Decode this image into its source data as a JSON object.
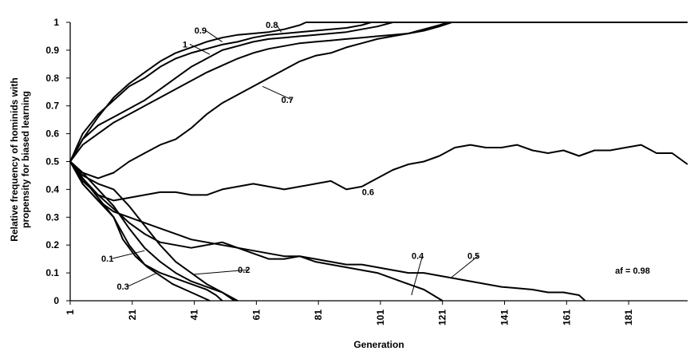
{
  "chart_data": {
    "type": "line",
    "title": "",
    "xlabel": "Generation",
    "ylabel_lines": [
      "Relative frequency of hominids with",
      "propensity for biased learning"
    ],
    "xlim": [
      1,
      200
    ],
    "ylim": [
      0,
      1
    ],
    "x_ticks": [
      1,
      21,
      41,
      61,
      81,
      101,
      121,
      141,
      161,
      181
    ],
    "y_ticks": [
      0,
      0.1,
      0.2,
      0.3,
      0.4,
      0.5,
      0.6,
      0.7,
      0.8,
      0.9,
      1
    ],
    "y_tick_labels": [
      "0",
      "0.1",
      "0.2",
      "0.3",
      "0.4",
      "0.5",
      "0.6",
      "0.7",
      "0.8",
      "0.9",
      "1"
    ],
    "annotation": "af = 0.98",
    "series": [
      {
        "name": "0.8",
        "points": [
          [
            1,
            0.5
          ],
          [
            5,
            0.58
          ],
          [
            10,
            0.66
          ],
          [
            15,
            0.73
          ],
          [
            20,
            0.78
          ],
          [
            25,
            0.82
          ],
          [
            30,
            0.86
          ],
          [
            35,
            0.89
          ],
          [
            40,
            0.91
          ],
          [
            45,
            0.93
          ],
          [
            50,
            0.945
          ],
          [
            55,
            0.955
          ],
          [
            60,
            0.96
          ],
          [
            65,
            0.965
          ],
          [
            70,
            0.975
          ],
          [
            75,
            0.99
          ],
          [
            77,
            1
          ],
          [
            200,
            1
          ]
        ]
      },
      {
        "name": "0.9",
        "points": [
          [
            1,
            0.5
          ],
          [
            5,
            0.6
          ],
          [
            10,
            0.67
          ],
          [
            15,
            0.72
          ],
          [
            20,
            0.77
          ],
          [
            25,
            0.8
          ],
          [
            30,
            0.84
          ],
          [
            35,
            0.87
          ],
          [
            40,
            0.89
          ],
          [
            45,
            0.905
          ],
          [
            50,
            0.92
          ],
          [
            55,
            0.93
          ],
          [
            60,
            0.945
          ],
          [
            65,
            0.955
          ],
          [
            70,
            0.96
          ],
          [
            75,
            0.965
          ],
          [
            80,
            0.97
          ],
          [
            85,
            0.975
          ],
          [
            90,
            0.98
          ],
          [
            95,
            0.99
          ],
          [
            98,
            1
          ],
          [
            200,
            1
          ]
        ]
      },
      {
        "name": "1",
        "points": [
          [
            1,
            0.5
          ],
          [
            5,
            0.58
          ],
          [
            10,
            0.63
          ],
          [
            15,
            0.66
          ],
          [
            20,
            0.69
          ],
          [
            25,
            0.72
          ],
          [
            30,
            0.76
          ],
          [
            35,
            0.8
          ],
          [
            40,
            0.84
          ],
          [
            45,
            0.87
          ],
          [
            50,
            0.9
          ],
          [
            55,
            0.915
          ],
          [
            60,
            0.93
          ],
          [
            65,
            0.94
          ],
          [
            70,
            0.945
          ],
          [
            75,
            0.95
          ],
          [
            80,
            0.955
          ],
          [
            85,
            0.96
          ],
          [
            90,
            0.965
          ],
          [
            95,
            0.975
          ],
          [
            100,
            0.985
          ],
          [
            105,
            1
          ],
          [
            200,
            1
          ]
        ]
      },
      {
        "name": "",
        "points": [
          [
            1,
            0.5
          ],
          [
            5,
            0.56
          ],
          [
            10,
            0.6
          ],
          [
            15,
            0.64
          ],
          [
            20,
            0.67
          ],
          [
            25,
            0.7
          ],
          [
            30,
            0.73
          ],
          [
            35,
            0.76
          ],
          [
            40,
            0.79
          ],
          [
            45,
            0.82
          ],
          [
            50,
            0.845
          ],
          [
            55,
            0.87
          ],
          [
            60,
            0.89
          ],
          [
            65,
            0.905
          ],
          [
            70,
            0.915
          ],
          [
            75,
            0.925
          ],
          [
            80,
            0.93
          ],
          [
            85,
            0.935
          ],
          [
            90,
            0.94
          ],
          [
            95,
            0.945
          ],
          [
            100,
            0.95
          ],
          [
            105,
            0.955
          ],
          [
            110,
            0.96
          ],
          [
            115,
            0.97
          ],
          [
            120,
            0.985
          ],
          [
            124,
            1
          ],
          [
            200,
            1
          ]
        ]
      },
      {
        "name": "0.7",
        "points": [
          [
            1,
            0.5
          ],
          [
            5,
            0.46
          ],
          [
            10,
            0.44
          ],
          [
            15,
            0.46
          ],
          [
            20,
            0.5
          ],
          [
            25,
            0.53
          ],
          [
            30,
            0.56
          ],
          [
            35,
            0.58
          ],
          [
            40,
            0.62
          ],
          [
            45,
            0.67
          ],
          [
            50,
            0.71
          ],
          [
            55,
            0.74
          ],
          [
            60,
            0.77
          ],
          [
            65,
            0.8
          ],
          [
            70,
            0.83
          ],
          [
            75,
            0.86
          ],
          [
            80,
            0.88
          ],
          [
            85,
            0.89
          ],
          [
            90,
            0.91
          ],
          [
            95,
            0.925
          ],
          [
            100,
            0.94
          ],
          [
            105,
            0.95
          ],
          [
            110,
            0.96
          ],
          [
            115,
            0.975
          ],
          [
            120,
            0.99
          ],
          [
            123,
            1
          ],
          [
            200,
            1
          ]
        ]
      },
      {
        "name": "0.6",
        "points": [
          [
            1,
            0.5
          ],
          [
            5,
            0.43
          ],
          [
            10,
            0.38
          ],
          [
            15,
            0.36
          ],
          [
            20,
            0.37
          ],
          [
            25,
            0.38
          ],
          [
            30,
            0.39
          ],
          [
            35,
            0.39
          ],
          [
            40,
            0.38
          ],
          [
            45,
            0.38
          ],
          [
            50,
            0.4
          ],
          [
            55,
            0.41
          ],
          [
            60,
            0.42
          ],
          [
            65,
            0.41
          ],
          [
            70,
            0.4
          ],
          [
            75,
            0.41
          ],
          [
            80,
            0.42
          ],
          [
            85,
            0.43
          ],
          [
            90,
            0.4
          ],
          [
            95,
            0.41
          ],
          [
            100,
            0.44
          ],
          [
            105,
            0.47
          ],
          [
            110,
            0.49
          ],
          [
            115,
            0.5
          ],
          [
            120,
            0.52
          ],
          [
            125,
            0.55
          ],
          [
            130,
            0.56
          ],
          [
            135,
            0.55
          ],
          [
            140,
            0.55
          ],
          [
            145,
            0.56
          ],
          [
            150,
            0.54
          ],
          [
            155,
            0.53
          ],
          [
            160,
            0.54
          ],
          [
            165,
            0.52
          ],
          [
            170,
            0.54
          ],
          [
            175,
            0.54
          ],
          [
            180,
            0.55
          ],
          [
            185,
            0.56
          ],
          [
            190,
            0.53
          ],
          [
            195,
            0.53
          ],
          [
            200,
            0.49
          ]
        ]
      },
      {
        "name": "0.5",
        "points": [
          [
            1,
            0.5
          ],
          [
            5,
            0.42
          ],
          [
            10,
            0.36
          ],
          [
            15,
            0.32
          ],
          [
            20,
            0.3
          ],
          [
            25,
            0.28
          ],
          [
            30,
            0.26
          ],
          [
            35,
            0.24
          ],
          [
            40,
            0.22
          ],
          [
            45,
            0.21
          ],
          [
            50,
            0.2
          ],
          [
            55,
            0.19
          ],
          [
            60,
            0.18
          ],
          [
            65,
            0.17
          ],
          [
            70,
            0.16
          ],
          [
            75,
            0.16
          ],
          [
            80,
            0.15
          ],
          [
            85,
            0.14
          ],
          [
            90,
            0.13
          ],
          [
            95,
            0.13
          ],
          [
            100,
            0.12
          ],
          [
            105,
            0.11
          ],
          [
            110,
            0.1
          ],
          [
            115,
            0.1
          ],
          [
            120,
            0.09
          ],
          [
            125,
            0.08
          ],
          [
            130,
            0.07
          ],
          [
            135,
            0.06
          ],
          [
            140,
            0.05
          ],
          [
            145,
            0.045
          ],
          [
            150,
            0.04
          ],
          [
            155,
            0.03
          ],
          [
            160,
            0.03
          ],
          [
            165,
            0.02
          ],
          [
            167,
            0
          ]
        ]
      },
      {
        "name": "0.4",
        "points": [
          [
            1,
            0.5
          ],
          [
            5,
            0.44
          ],
          [
            10,
            0.38
          ],
          [
            15,
            0.33
          ],
          [
            20,
            0.28
          ],
          [
            25,
            0.24
          ],
          [
            30,
            0.21
          ],
          [
            35,
            0.2
          ],
          [
            40,
            0.19
          ],
          [
            45,
            0.2
          ],
          [
            50,
            0.21
          ],
          [
            55,
            0.19
          ],
          [
            60,
            0.17
          ],
          [
            65,
            0.15
          ],
          [
            70,
            0.15
          ],
          [
            75,
            0.16
          ],
          [
            80,
            0.14
          ],
          [
            85,
            0.13
          ],
          [
            90,
            0.12
          ],
          [
            95,
            0.11
          ],
          [
            100,
            0.1
          ],
          [
            105,
            0.08
          ],
          [
            110,
            0.06
          ],
          [
            115,
            0.04
          ],
          [
            118,
            0.02
          ],
          [
            121,
            0
          ]
        ]
      },
      {
        "name": "0.3",
        "points": [
          [
            1,
            0.5
          ],
          [
            5,
            0.42
          ],
          [
            10,
            0.36
          ],
          [
            15,
            0.3
          ],
          [
            20,
            0.2
          ],
          [
            25,
            0.13
          ],
          [
            30,
            0.1
          ],
          [
            35,
            0.08
          ],
          [
            40,
            0.06
          ],
          [
            45,
            0.04
          ],
          [
            48,
            0.02
          ],
          [
            50,
            0
          ]
        ]
      },
      {
        "name": "0.1",
        "points": [
          [
            1,
            0.5
          ],
          [
            5,
            0.44
          ],
          [
            10,
            0.37
          ],
          [
            15,
            0.3
          ],
          [
            18,
            0.22
          ],
          [
            22,
            0.16
          ],
          [
            26,
            0.12
          ],
          [
            30,
            0.09
          ],
          [
            34,
            0.06
          ],
          [
            38,
            0.04
          ],
          [
            42,
            0.02
          ],
          [
            46,
            0
          ]
        ]
      },
      {
        "name": "0.2",
        "points": [
          [
            1,
            0.5
          ],
          [
            5,
            0.46
          ],
          [
            10,
            0.4
          ],
          [
            15,
            0.34
          ],
          [
            20,
            0.26
          ],
          [
            25,
            0.19
          ],
          [
            30,
            0.14
          ],
          [
            35,
            0.1
          ],
          [
            40,
            0.07
          ],
          [
            45,
            0.05
          ],
          [
            50,
            0.03
          ],
          [
            54,
            0
          ]
        ]
      },
      {
        "name": "",
        "points": [
          [
            1,
            0.5
          ],
          [
            5,
            0.45
          ],
          [
            10,
            0.42
          ],
          [
            15,
            0.4
          ],
          [
            20,
            0.34
          ],
          [
            25,
            0.27
          ],
          [
            30,
            0.2
          ],
          [
            35,
            0.14
          ],
          [
            40,
            0.1
          ],
          [
            45,
            0.06
          ],
          [
            50,
            0.03
          ],
          [
            55,
            0
          ]
        ]
      }
    ],
    "labels": [
      {
        "text": "0.8",
        "x": 66,
        "y": 0.98,
        "ax": 69,
        "ay": 0.965
      },
      {
        "text": "0.9",
        "x": 43,
        "y": 0.96,
        "ax": 50,
        "ay": 0.93
      },
      {
        "text": "1",
        "x": 38,
        "y": 0.91,
        "ax": 46,
        "ay": 0.885
      },
      {
        "text": "0.7",
        "x": 71,
        "y": 0.71,
        "ax": 63,
        "ay": 0.77
      },
      {
        "text": "0.6",
        "x": 97,
        "y": 0.38,
        "ax": 0,
        "ay": 0
      },
      {
        "text": "0.4",
        "x": 113,
        "y": 0.15,
        "ax": 111,
        "ay": 0.02
      },
      {
        "text": "0.5",
        "x": 131,
        "y": 0.15,
        "ax": 124,
        "ay": 0.085
      },
      {
        "text": "0.1",
        "x": 13,
        "y": 0.14,
        "ax": 25,
        "ay": 0.18
      },
      {
        "text": "0.2",
        "x": 57,
        "y": 0.1,
        "ax": 41,
        "ay": 0.095
      },
      {
        "text": "0.3",
        "x": 18,
        "y": 0.04,
        "ax": 29,
        "ay": 0.1
      }
    ]
  }
}
